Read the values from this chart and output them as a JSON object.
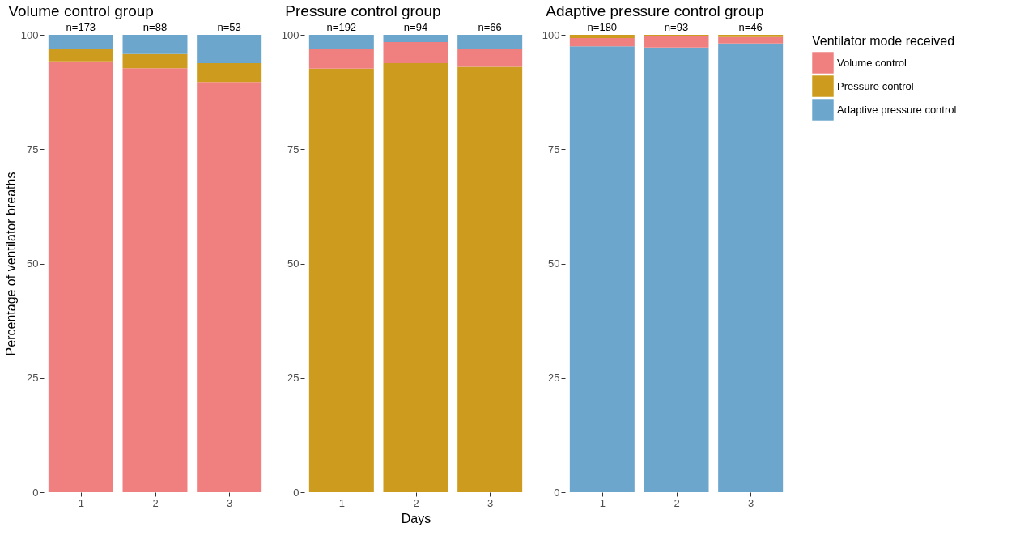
{
  "chart_data": [
    {
      "type": "bar",
      "stacked": true,
      "title": "Volume control group",
      "ylabel": "Percentage of ventilator breaths",
      "categories": [
        "1",
        "2",
        "3"
      ],
      "ylim": [
        0,
        100
      ],
      "yticks": [
        0,
        25,
        50,
        75,
        100
      ],
      "grid": false,
      "legend": "right",
      "legend_title": "Ventilator mode received",
      "series": [
        {
          "name": "Volume control",
          "color": "#f08080",
          "values": [
            94.2,
            92.7,
            89.7
          ]
        },
        {
          "name": "Pressure control",
          "color": "#cd9b1d",
          "values": [
            2.8,
            3.1,
            4.1
          ]
        },
        {
          "name": "Adaptive pressure control",
          "color": "#6ca6cd",
          "values": [
            3.0,
            4.2,
            6.2
          ]
        }
      ],
      "annotations": [
        {
          "text": "n=173",
          "x": "1",
          "y": 100
        },
        {
          "text": "n=88",
          "x": "2",
          "y": 100
        },
        {
          "text": "n=53",
          "x": "3",
          "y": 100
        }
      ]
    },
    {
      "type": "bar",
      "stacked": true,
      "title": "Pressure control group",
      "xlabel": "Days",
      "categories": [
        "1",
        "2",
        "3"
      ],
      "ylim": [
        0,
        100
      ],
      "yticks": [
        0,
        25,
        50,
        75,
        100
      ],
      "grid": false,
      "series": [
        {
          "name": "Pressure control",
          "color": "#cd9b1d",
          "values": [
            92.6,
            93.8,
            93.0
          ]
        },
        {
          "name": "Volume control",
          "color": "#f08080",
          "values": [
            4.4,
            4.6,
            3.8
          ]
        },
        {
          "name": "Adaptive pressure control",
          "color": "#6ca6cd",
          "values": [
            3.0,
            1.6,
            3.2
          ]
        }
      ],
      "annotations": [
        {
          "text": "n=192",
          "x": "1",
          "y": 100
        },
        {
          "text": "n=94",
          "x": "2",
          "y": 100
        },
        {
          "text": "n=66",
          "x": "3",
          "y": 100
        }
      ]
    },
    {
      "type": "bar",
      "stacked": true,
      "title": "Adaptive pressure control group",
      "categories": [
        "1",
        "2",
        "3"
      ],
      "ylim": [
        0,
        100
      ],
      "yticks": [
        0,
        25,
        50,
        75,
        100
      ],
      "grid": false,
      "series": [
        {
          "name": "Adaptive pressure control",
          "color": "#6ca6cd",
          "values": [
            97.5,
            97.2,
            98.1
          ]
        },
        {
          "name": "Volume control",
          "color": "#f08080",
          "values": [
            1.8,
            2.6,
            1.4
          ]
        },
        {
          "name": "Pressure control",
          "color": "#cd9b1d",
          "values": [
            0.7,
            0.2,
            0.5
          ]
        }
      ],
      "annotations": [
        {
          "text": "n=180",
          "x": "1",
          "y": 100
        },
        {
          "text": "n=93",
          "x": "2",
          "y": 100
        },
        {
          "text": "n=46",
          "x": "3",
          "y": 100
        }
      ]
    }
  ]
}
